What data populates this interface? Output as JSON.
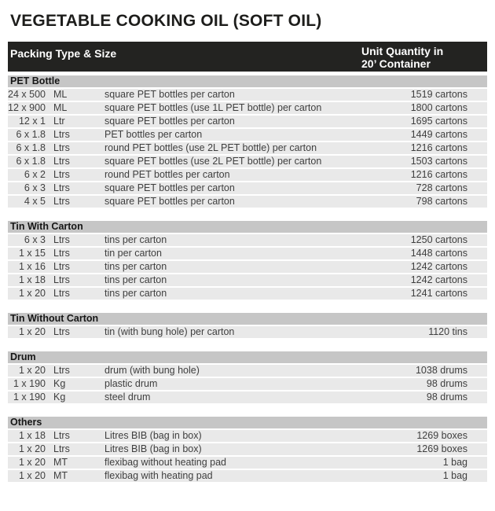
{
  "page": {
    "title": "VEGETABLE COOKING OIL (SOFT OIL)"
  },
  "colors": {
    "header_bar_bg": "#232321",
    "header_bar_text": "#ffffff",
    "section_header_bg": "#c6c6c6",
    "row_bg": "#e9e9e9",
    "row_text": "#3f3f3f",
    "title_text": "#1d1d1b"
  },
  "table": {
    "header": {
      "col_packing": "Packing Type & Size",
      "col_quantity_line1": "Unit Quantity in",
      "col_quantity_line2": "20’ Container"
    },
    "sections": [
      {
        "name": "PET Bottle",
        "rows": [
          {
            "size": "24 x 500",
            "unit": "ML",
            "description": "square PET bottles per carton",
            "quantity": "1519 cartons"
          },
          {
            "size": "12 x 900",
            "unit": "ML",
            "description": "square PET bottles (use 1L PET bottle) per carton",
            "quantity": "1800 cartons"
          },
          {
            "size": "12 x 1",
            "unit": "Ltr",
            "description": "square PET bottles per carton",
            "quantity": "1695 cartons"
          },
          {
            "size": "6 x 1.8",
            "unit": "Ltrs",
            "description": "PET bottles per carton",
            "quantity": "1449 cartons"
          },
          {
            "size": "6 x 1.8",
            "unit": "Ltrs",
            "description": "round PET bottles (use 2L PET bottle) per carton",
            "quantity": "1216 cartons"
          },
          {
            "size": "6 x 1.8",
            "unit": "Ltrs",
            "description": "square PET bottles (use 2L PET bottle) per carton",
            "quantity": "1503 cartons"
          },
          {
            "size": "6 x 2",
            "unit": "Ltrs",
            "description": "round PET bottles per carton",
            "quantity": "1216 cartons"
          },
          {
            "size": "6 x 3",
            "unit": "Ltrs",
            "description": "square PET bottles per carton",
            "quantity": "728 cartons"
          },
          {
            "size": "4 x 5",
            "unit": "Ltrs",
            "description": "square PET bottles per carton",
            "quantity": "798 cartons"
          }
        ]
      },
      {
        "name": "Tin With Carton",
        "rows": [
          {
            "size": "6 x 3",
            "unit": "Ltrs",
            "description": "tins per carton",
            "quantity": "1250 cartons"
          },
          {
            "size": "1 x 15",
            "unit": "Ltrs",
            "description": "tin per carton",
            "quantity": "1448 cartons"
          },
          {
            "size": "1 x 16",
            "unit": "Ltrs",
            "description": "tins per carton",
            "quantity": "1242 cartons"
          },
          {
            "size": "1 x 18",
            "unit": "Ltrs",
            "description": "tins per carton",
            "quantity": "1242 cartons"
          },
          {
            "size": "1 x 20",
            "unit": "Ltrs",
            "description": "tins per carton",
            "quantity": "1241 cartons"
          }
        ]
      },
      {
        "name": "Tin Without Carton",
        "rows": [
          {
            "size": "1 x 20",
            "unit": "Ltrs",
            "description": "tin (with bung hole) per carton",
            "quantity": "1120 tins"
          }
        ]
      },
      {
        "name": "Drum",
        "rows": [
          {
            "size": "1 x 20",
            "unit": "Ltrs",
            "description": "drum (with bung hole)",
            "quantity": "1038 drums"
          },
          {
            "size": "1 x 190",
            "unit": "Kg",
            "description": "plastic drum",
            "quantity": "98 drums"
          },
          {
            "size": "1 x 190",
            "unit": "Kg",
            "description": "steel drum",
            "quantity": "98 drums"
          }
        ]
      },
      {
        "name": "Others",
        "rows": [
          {
            "size": "1 x 18",
            "unit": "Ltrs",
            "description": "Litres BIB (bag in box)",
            "quantity": "1269 boxes"
          },
          {
            "size": "1 x 20",
            "unit": "Ltrs",
            "description": "Litres BIB (bag in box)",
            "quantity": "1269 boxes"
          },
          {
            "size": "1 x 20",
            "unit": "MT",
            "description": "flexibag without heating pad",
            "quantity": "1 bag"
          },
          {
            "size": "1 x 20",
            "unit": "MT",
            "description": "flexibag with heating pad",
            "quantity": "1 bag"
          }
        ]
      }
    ]
  }
}
